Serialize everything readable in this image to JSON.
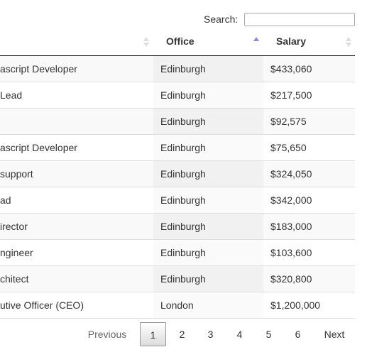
{
  "search": {
    "label": "Search:"
  },
  "table": {
    "headers": {
      "office": "Office",
      "salary": "Salary"
    },
    "rows": [
      [
        "ascript Developer",
        "Edinburgh",
        "$433,060"
      ],
      [
        "Lead",
        "Edinburgh",
        "$217,500"
      ],
      [
        null,
        "Edinburgh",
        "$92,575"
      ],
      [
        "ascript Developer",
        "Edinburgh",
        "$75,650"
      ],
      [
        "support",
        "Edinburgh",
        "$324,050"
      ],
      [
        "ad",
        "Edinburgh",
        "$342,000"
      ],
      [
        "irector",
        "Edinburgh",
        "$183,000"
      ],
      [
        "ngineer",
        "Edinburgh",
        "$103,600"
      ],
      [
        "chitect",
        "Edinburgh",
        "$320,800"
      ],
      [
        "utive Officer (CEO)",
        "London",
        "$1,200,000"
      ]
    ]
  },
  "pagination": {
    "previous": "Previous",
    "pages": [
      "1",
      "2",
      "3",
      "4",
      "5",
      "6"
    ],
    "next": "Next"
  }
}
